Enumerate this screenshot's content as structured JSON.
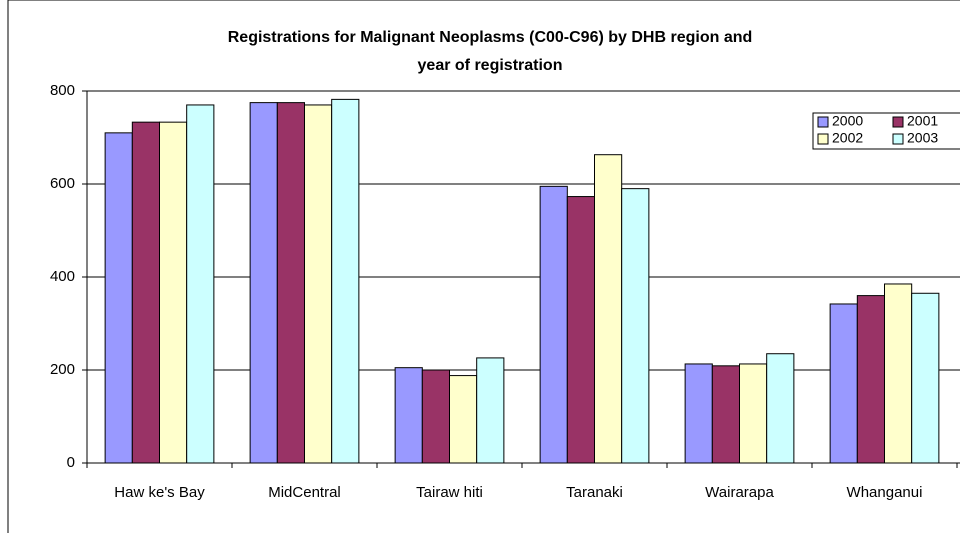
{
  "chart_data": {
    "type": "bar",
    "title": [
      "Registrations for Malignant Neoplasms (C00-C96) by DHB region and",
      "year of registration"
    ],
    "categories": [
      "Haw ke's Bay",
      "MidCentral",
      "Tairaw hiti",
      "Taranaki",
      "Wairarapa",
      "Whanganui"
    ],
    "series": [
      {
        "name": "2000",
        "color": "#9999ff",
        "values": [
          710,
          775,
          205,
          595,
          213,
          342
        ]
      },
      {
        "name": "2001",
        "color": "#993366",
        "values": [
          733,
          775,
          200,
          573,
          209,
          360
        ]
      },
      {
        "name": "2002",
        "color": "#ffffcc",
        "values": [
          733,
          770,
          188,
          663,
          213,
          385
        ]
      },
      {
        "name": "2003",
        "color": "#ccffff",
        "values": [
          770,
          782,
          226,
          590,
          235,
          365
        ]
      }
    ],
    "ylim": [
      0,
      800
    ],
    "yticks": [
      0,
      200,
      400,
      600,
      800
    ],
    "grid": true,
    "legend": "top-right"
  }
}
